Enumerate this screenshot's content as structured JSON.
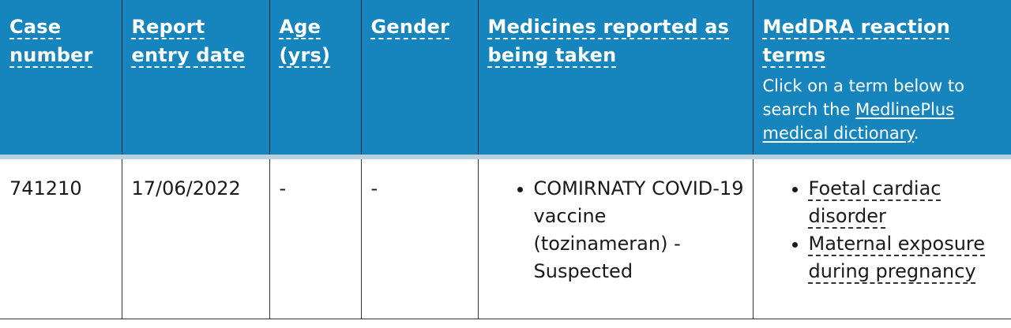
{
  "headers": {
    "case_number": "Case number",
    "report_entry_date": "Report entry date",
    "age": "Age (yrs)",
    "gender": "Gender",
    "medicines": "Medicines reported as being taken",
    "meddra": "MedDRA reaction terms",
    "meddra_note_before": "Click on a term below to search the ",
    "meddra_note_link": "MedlinePlus medical dictionary",
    "meddra_note_after": "."
  },
  "row": {
    "case_number": "741210",
    "report_entry_date": "17/06/2022",
    "age": "-",
    "gender": "-",
    "medicines": [
      "COMIRNATY COVID-19 vaccine (tozinameran) - Suspected"
    ],
    "reaction_terms": [
      "Foetal cardiac disorder",
      "Maternal exposure during pregnancy"
    ]
  },
  "colors": {
    "header_bg": "#1785bd",
    "header_text": "#ffffff",
    "header_divider": "#b9d1de"
  }
}
